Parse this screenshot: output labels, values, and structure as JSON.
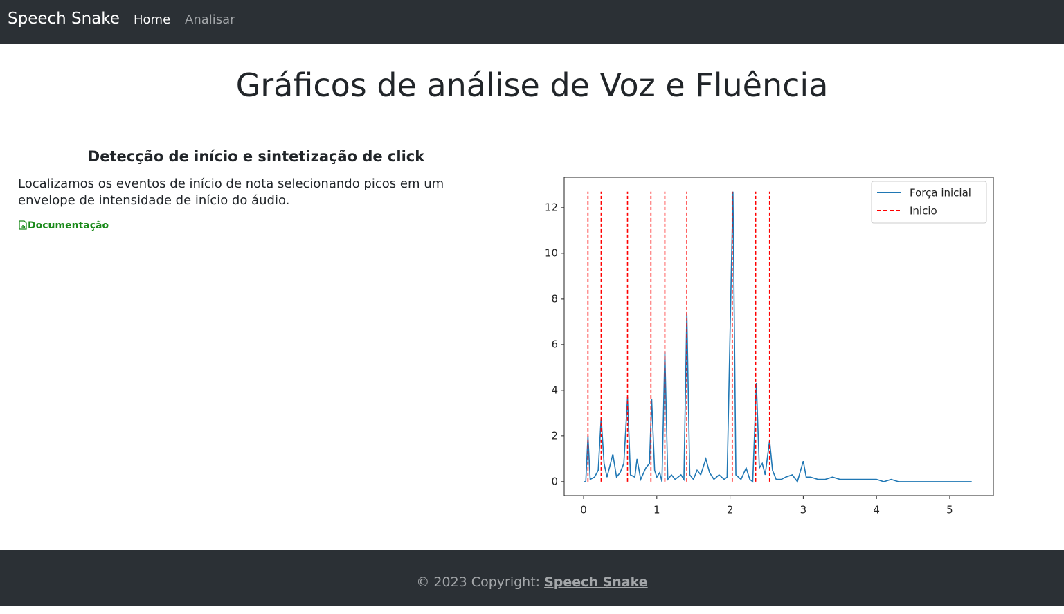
{
  "nav": {
    "brand": "Speech Snake",
    "links": [
      "Home",
      "Analisar"
    ]
  },
  "page_title": "Gráficos de análise de Voz e Fluência",
  "section": {
    "heading": "Detecção de início e sintetização de click",
    "text": "Localizamos os eventos de início de nota selecionando picos em um envelope de intensidade de início do áudio.",
    "link": "Documentação"
  },
  "chart_data": {
    "type": "line",
    "xlim": [
      -0.265,
      5.596
    ],
    "ylim": [
      -0.61,
      13.33
    ],
    "xticks": [
      0,
      1,
      2,
      3,
      4,
      5
    ],
    "yticks": [
      0,
      2,
      4,
      6,
      8,
      10,
      12
    ],
    "grid": false,
    "legend": "upper right",
    "series": [
      {
        "name": "Força inicial",
        "color": "#1f77b4",
        "type": "line",
        "x": [
          0,
          0.03,
          0.06,
          0.09,
          0.15,
          0.2,
          0.24,
          0.28,
          0.32,
          0.4,
          0.45,
          0.5,
          0.55,
          0.6,
          0.64,
          0.7,
          0.73,
          0.78,
          0.85,
          0.9,
          0.93,
          0.97,
          1.0,
          1.04,
          1.07,
          1.11,
          1.15,
          1.2,
          1.25,
          1.33,
          1.37,
          1.41,
          1.45,
          1.5,
          1.55,
          1.6,
          1.67,
          1.72,
          1.78,
          1.85,
          1.92,
          1.96,
          2.04,
          2.08,
          2.15,
          2.22,
          2.27,
          2.31,
          2.36,
          2.4,
          2.44,
          2.48,
          2.54,
          2.58,
          2.63,
          2.7,
          2.76,
          2.85,
          2.92,
          3.0,
          3.04,
          3.1,
          3.2,
          3.3,
          3.4,
          3.5,
          3.6,
          3.7,
          3.8,
          3.9,
          4.0,
          4.1,
          4.2,
          4.3,
          4.5,
          5.0,
          5.3
        ],
        "values": [
          0,
          0,
          2.0,
          0.1,
          0.2,
          0.5,
          2.8,
          0.8,
          0.2,
          1.2,
          0.2,
          0.4,
          0.8,
          3.7,
          0.3,
          0.2,
          1.0,
          0.1,
          0.6,
          0.8,
          3.6,
          0.5,
          0.2,
          0.4,
          0,
          5.7,
          0.1,
          0.3,
          0.1,
          0.3,
          0.1,
          7.4,
          0.3,
          0.1,
          0.5,
          0.3,
          1.0,
          0.4,
          0.1,
          0.3,
          0.1,
          0.2,
          12.7,
          0.3,
          0.1,
          0.6,
          0.1,
          0,
          4.3,
          0.6,
          0.8,
          0.3,
          1.8,
          0.5,
          0.1,
          0.1,
          0.2,
          0.3,
          0,
          0.9,
          0.2,
          0.2,
          0.1,
          0.1,
          0.2,
          0.1,
          0.1,
          0.1,
          0.1,
          0.1,
          0.1,
          0,
          0.1,
          0,
          0,
          0,
          0
        ]
      },
      {
        "name": "Inicio",
        "color": "#ff0000",
        "type": "vlines",
        "dashed": true,
        "x": [
          0.06,
          0.24,
          0.6,
          0.92,
          1.11,
          1.41,
          2.03,
          2.35,
          2.54
        ],
        "ymin": 0,
        "ymax": 12.7
      }
    ]
  },
  "footer": {
    "text": "© 2023 Copyright:",
    "link": "Speech Snake"
  }
}
